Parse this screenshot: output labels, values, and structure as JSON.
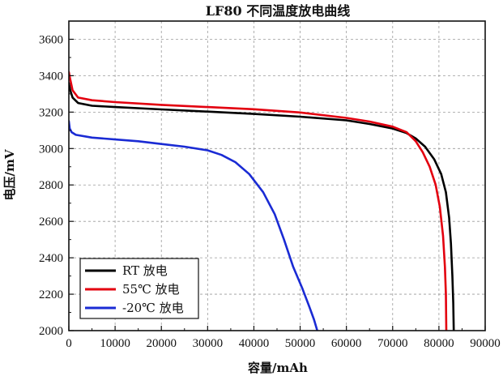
{
  "chart_data": {
    "type": "line",
    "title": "LF80 不同温度放电曲线",
    "xlabel": "容量/mAh",
    "ylabel": "电压/mV",
    "xlim": [
      0,
      90000
    ],
    "ylim": [
      2000,
      3700
    ],
    "x_ticks": [
      "0",
      "10000",
      "20000",
      "30000",
      "40000",
      "50000",
      "60000",
      "70000",
      "80000",
      "90000"
    ],
    "y_ticks": [
      "2000",
      "2200",
      "2400",
      "2600",
      "2800",
      "3000",
      "3200",
      "3400",
      "3600"
    ],
    "grid": true,
    "legend_position": "bottom-left",
    "series": [
      {
        "name": "RT  放电",
        "color": "#000000",
        "points": [
          [
            0,
            3360
          ],
          [
            300,
            3320
          ],
          [
            800,
            3280
          ],
          [
            2000,
            3250
          ],
          [
            5000,
            3235
          ],
          [
            10000,
            3228
          ],
          [
            20000,
            3215
          ],
          [
            30000,
            3203
          ],
          [
            40000,
            3190
          ],
          [
            50000,
            3175
          ],
          [
            60000,
            3155
          ],
          [
            65000,
            3135
          ],
          [
            70000,
            3110
          ],
          [
            73000,
            3085
          ],
          [
            75000,
            3055
          ],
          [
            77000,
            3010
          ],
          [
            79000,
            2940
          ],
          [
            80500,
            2860
          ],
          [
            81500,
            2760
          ],
          [
            82200,
            2620
          ],
          [
            82600,
            2480
          ],
          [
            82900,
            2300
          ],
          [
            83100,
            2150
          ],
          [
            83200,
            2000
          ]
        ]
      },
      {
        "name": "55℃  放电",
        "color": "#e3000f",
        "points": [
          [
            0,
            3420
          ],
          [
            300,
            3380
          ],
          [
            800,
            3320
          ],
          [
            2000,
            3280
          ],
          [
            5000,
            3265
          ],
          [
            10000,
            3255
          ],
          [
            20000,
            3240
          ],
          [
            30000,
            3228
          ],
          [
            40000,
            3216
          ],
          [
            50000,
            3198
          ],
          [
            60000,
            3168
          ],
          [
            65000,
            3148
          ],
          [
            70000,
            3120
          ],
          [
            73000,
            3090
          ],
          [
            75000,
            3040
          ],
          [
            76500,
            2980
          ],
          [
            78000,
            2900
          ],
          [
            79300,
            2800
          ],
          [
            80200,
            2680
          ],
          [
            80900,
            2520
          ],
          [
            81300,
            2350
          ],
          [
            81500,
            2200
          ],
          [
            81600,
            2000
          ]
        ]
      },
      {
        "name": "-20℃  放电",
        "color": "#1a2bd4",
        "points": [
          [
            0,
            3150
          ],
          [
            200,
            3110
          ],
          [
            600,
            3090
          ],
          [
            1500,
            3075
          ],
          [
            5000,
            3060
          ],
          [
            10000,
            3050
          ],
          [
            15000,
            3040
          ],
          [
            20000,
            3025
          ],
          [
            25000,
            3010
          ],
          [
            30000,
            2990
          ],
          [
            33000,
            2965
          ],
          [
            36000,
            2925
          ],
          [
            39000,
            2860
          ],
          [
            42000,
            2760
          ],
          [
            44500,
            2640
          ],
          [
            46500,
            2500
          ],
          [
            48500,
            2350
          ],
          [
            50500,
            2230
          ],
          [
            52000,
            2130
          ],
          [
            53000,
            2060
          ],
          [
            53700,
            2000
          ]
        ]
      }
    ]
  }
}
